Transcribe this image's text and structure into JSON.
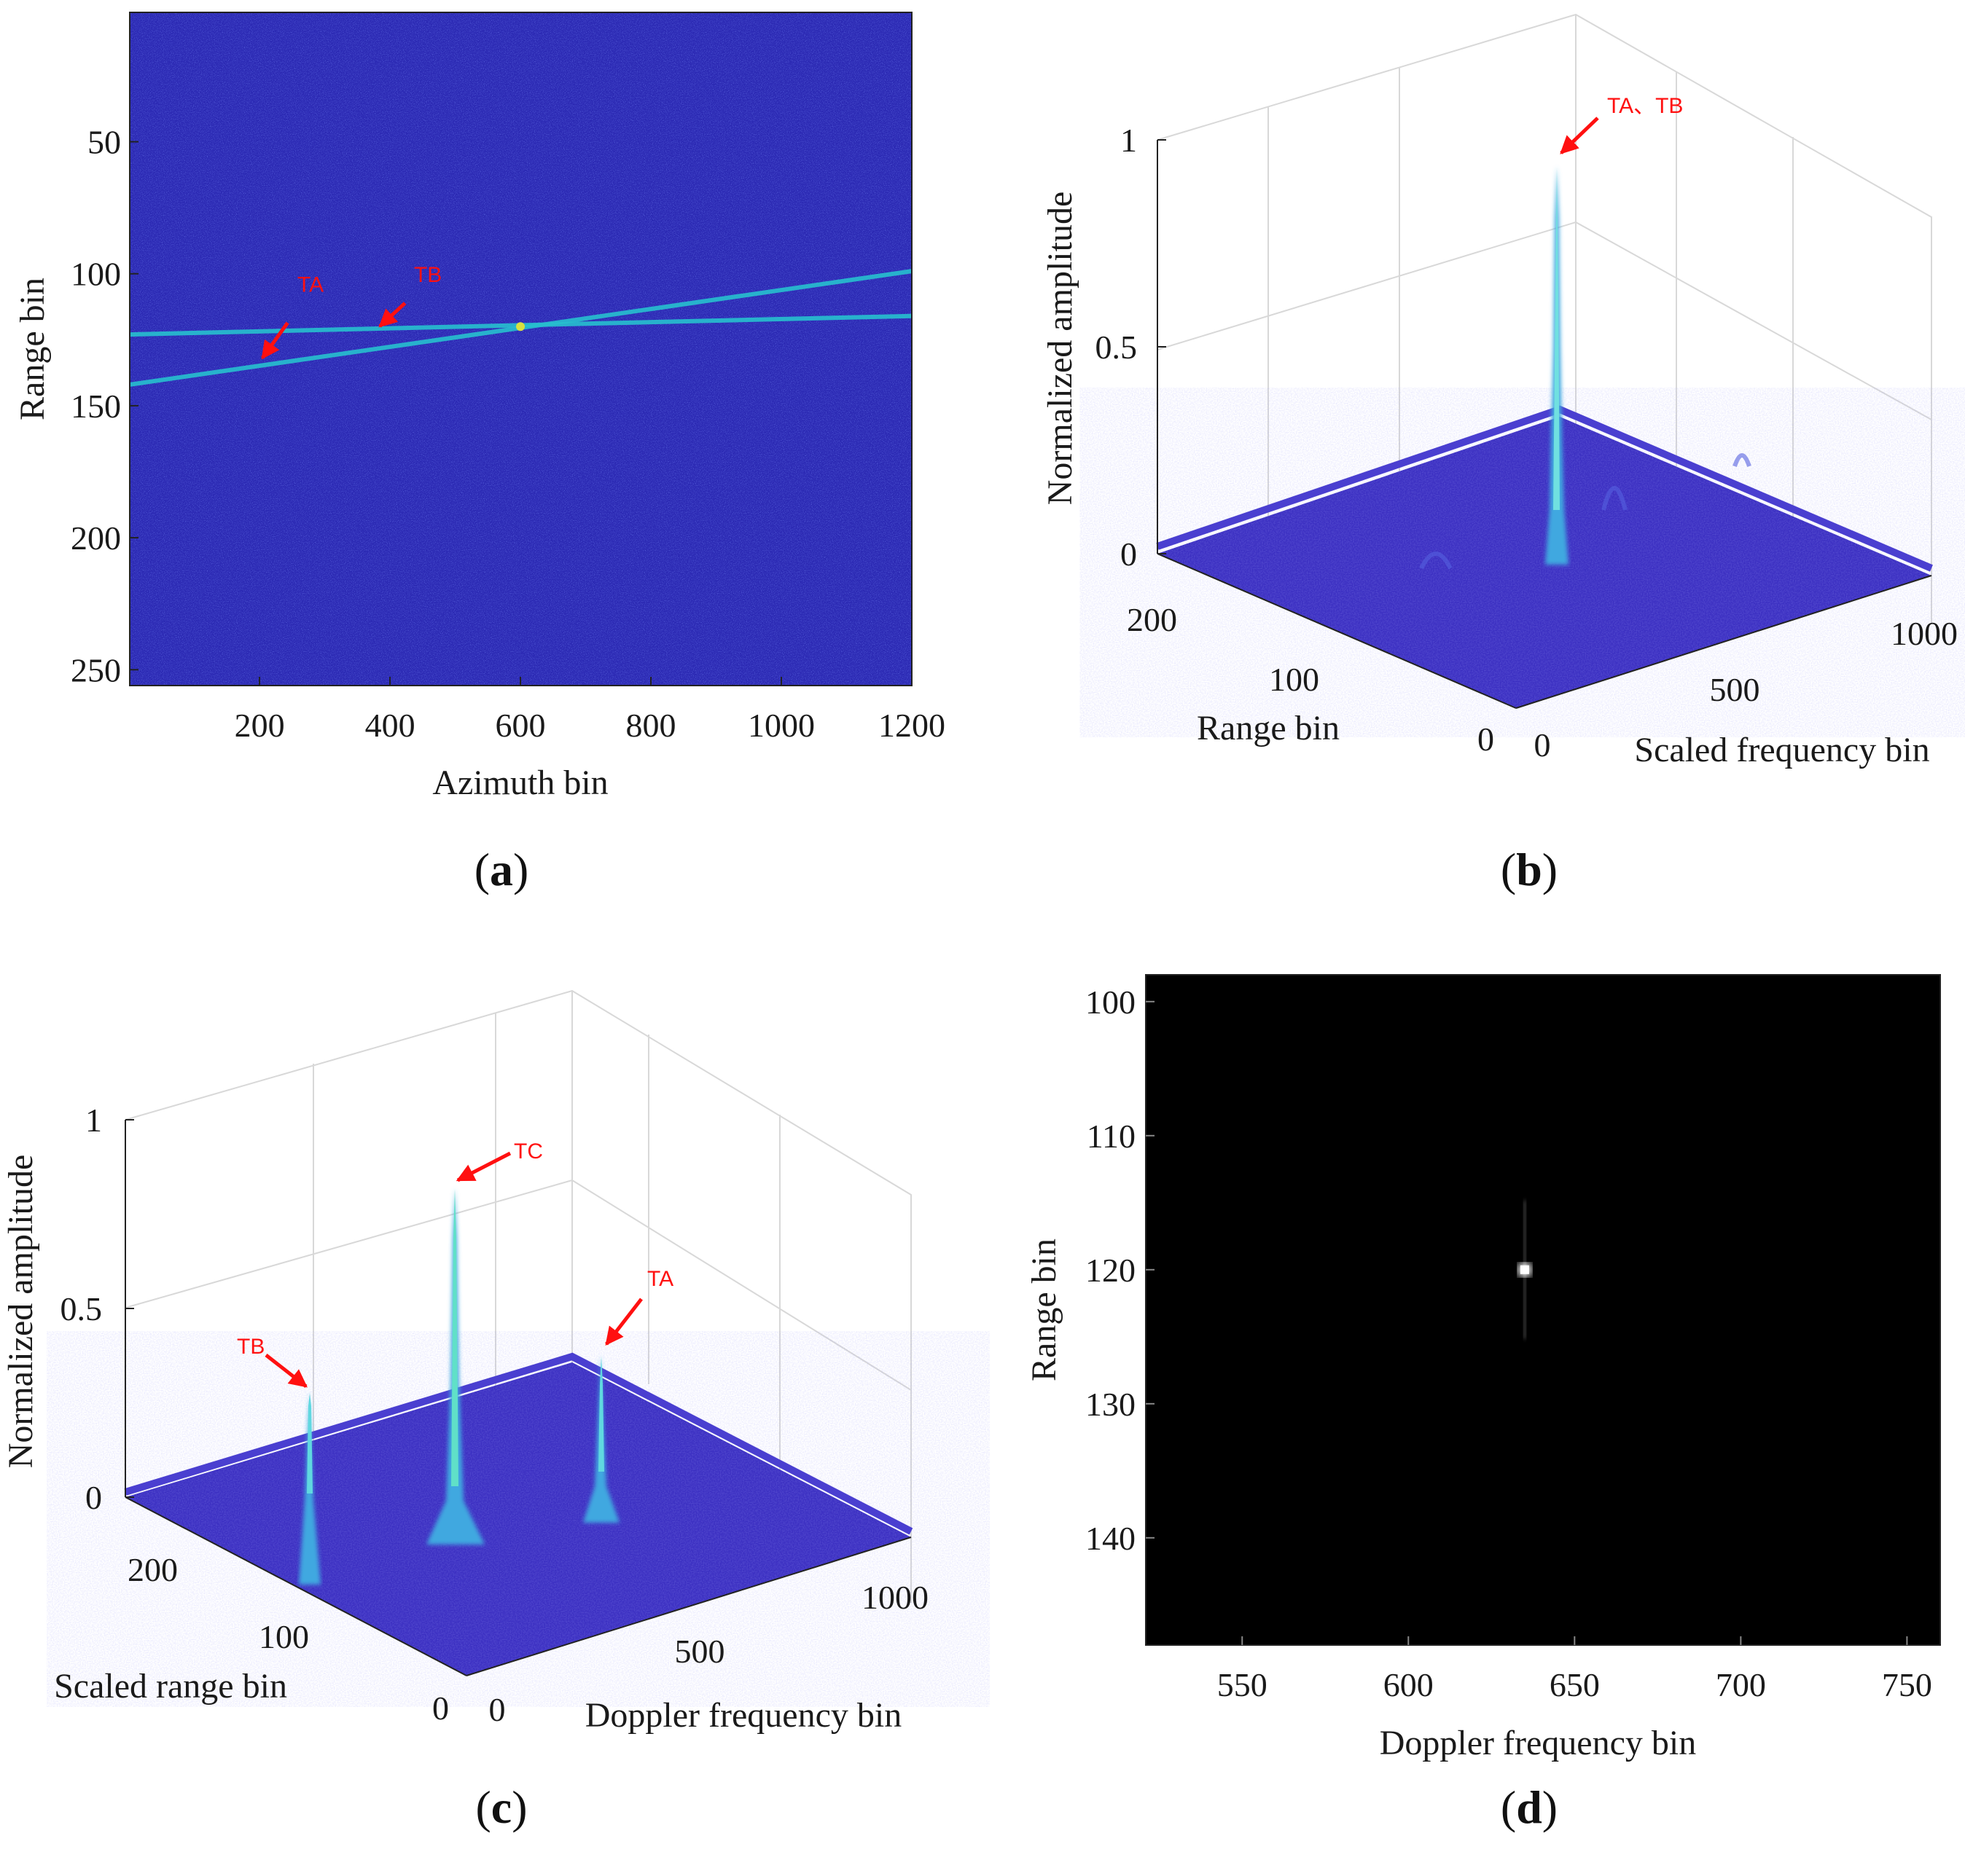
{
  "colors": {
    "background": "#ffffff",
    "noise_blue": "#3b2fc0",
    "line_cyan": "#27c0cf",
    "peak_cyan": "#37c6d6",
    "arrow_red": "#ff1010",
    "image_d_bg": "#000000",
    "image_d_spot": "#ffffff"
  },
  "panels": {
    "a": {
      "label_open": "(",
      "label_letter": "a",
      "label_close": ")"
    },
    "b": {
      "label_open": "(",
      "label_letter": "b",
      "label_close": ")"
    },
    "c": {
      "label_open": "(",
      "label_letter": "c",
      "label_close": ")"
    },
    "d": {
      "label_open": "(",
      "label_letter": "d",
      "label_close": ")"
    }
  },
  "chart_data": [
    {
      "id": "a",
      "type": "heatmap",
      "title": "",
      "xlabel": "Azimuth bin",
      "ylabel": "Range bin",
      "xlim": [
        1,
        1200
      ],
      "ylim": [
        256,
        1
      ],
      "xticks": [
        200,
        400,
        600,
        800,
        1000,
        1200
      ],
      "yticks": [
        50,
        100,
        150,
        200,
        250
      ],
      "series": [
        {
          "name": "TA",
          "x": [
            1,
            1200
          ],
          "y": [
            142,
            99
          ]
        },
        {
          "name": "TB",
          "x": [
            1,
            1200
          ],
          "y": [
            123,
            116
          ]
        }
      ],
      "annotations": [
        {
          "text": "TA",
          "target_x": 200,
          "target_y": 133
        },
        {
          "text": "TB",
          "target_x": 380,
          "target_y": 121
        }
      ]
    },
    {
      "id": "b",
      "type": "surface",
      "title": "",
      "xlabel": "Scaled frequency bin",
      "ylabel": "Range  bin",
      "zlabel": "Normalized amplitude",
      "xticks": [
        0,
        500,
        1000
      ],
      "yticks": [
        0,
        100,
        200
      ],
      "zticks": [
        0,
        0.5,
        1
      ],
      "zlim": [
        0,
        1
      ],
      "noise_level": 0.25,
      "peaks": [
        {
          "name": "TA、TB",
          "x": 640,
          "y": 120,
          "z": 0.93
        }
      ],
      "annotations": [
        {
          "text": "TA、TB"
        }
      ]
    },
    {
      "id": "c",
      "type": "surface",
      "title": "",
      "xlabel": "Doppler frequency bin",
      "ylabel": "Scaled range bin",
      "zlabel": "Normalized amplitude",
      "xticks": [
        0,
        500,
        1000
      ],
      "yticks": [
        0,
        100,
        200
      ],
      "zticks": [
        0,
        0.5,
        1
      ],
      "zlim": [
        0,
        1
      ],
      "noise_level": 0.2,
      "peaks": [
        {
          "name": "TB",
          "z": 0.28
        },
        {
          "name": "TC",
          "z": 0.82
        },
        {
          "name": "TA",
          "z": 0.38
        }
      ],
      "annotations": [
        {
          "text": "TB"
        },
        {
          "text": "TC"
        },
        {
          "text": "TA"
        }
      ]
    },
    {
      "id": "d",
      "type": "heatmap",
      "title": "",
      "xlabel": "Doppler frequency bin",
      "ylabel": "Range bin",
      "xlim": [
        521,
        760
      ],
      "ylim": [
        148,
        98
      ],
      "xticks": [
        550,
        600,
        650,
        700,
        750
      ],
      "yticks": [
        100,
        110,
        120,
        130,
        140
      ],
      "peaks": [
        {
          "x": 635,
          "y": 120
        }
      ]
    }
  ]
}
